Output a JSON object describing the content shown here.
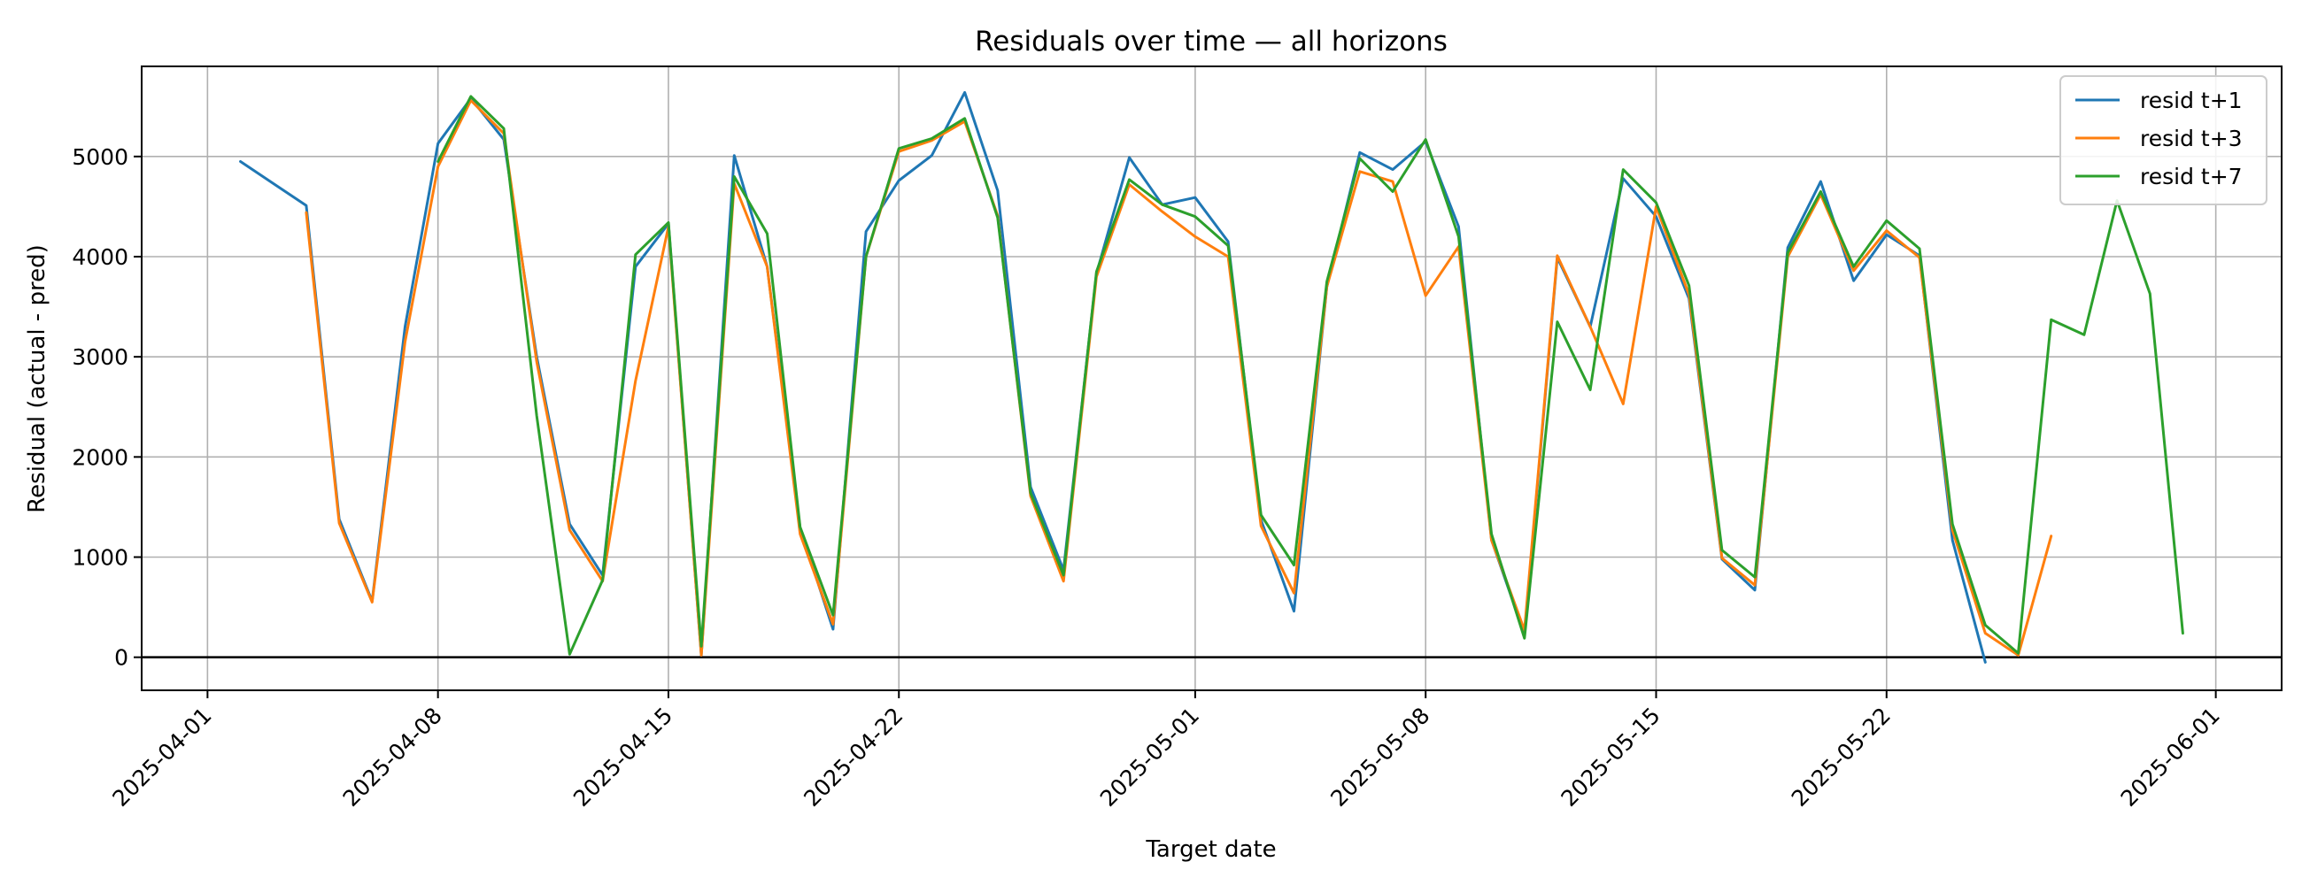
{
  "chart_data": {
    "type": "line",
    "title": "Residuals over time — all horizons",
    "xlabel": "Target date",
    "ylabel": "Residual (actual - pred)",
    "x_ticks": [
      "2025-04-01",
      "2025-04-08",
      "2025-04-15",
      "2025-04-22",
      "2025-05-01",
      "2025-05-08",
      "2025-05-15",
      "2025-05-22",
      "2025-06-01"
    ],
    "y_ticks": [
      0,
      1000,
      2000,
      3000,
      4000,
      5000
    ],
    "xlim": [
      "2025-03-30",
      "2025-06-03"
    ],
    "ylim": [
      -330,
      5900
    ],
    "grid": true,
    "legend_position": "top-right",
    "zero_line": 0,
    "series": [
      {
        "name": "resid t+1",
        "color": "#1f77b4",
        "x": [
          "2025-04-02",
          "2025-04-03",
          "2025-04-04",
          "2025-04-05",
          "2025-04-06",
          "2025-04-07",
          "2025-04-08",
          "2025-04-09",
          "2025-04-10",
          "2025-04-11",
          "2025-04-12",
          "2025-04-13",
          "2025-04-14",
          "2025-04-15",
          "2025-04-16",
          "2025-04-17",
          "2025-04-18",
          "2025-04-19",
          "2025-04-20",
          "2025-04-21",
          "2025-04-22",
          "2025-04-23",
          "2025-04-24",
          "2025-04-25",
          "2025-04-26",
          "2025-04-27",
          "2025-04-28",
          "2025-04-29",
          "2025-04-30",
          "2025-05-01",
          "2025-05-02",
          "2025-05-03",
          "2025-05-04",
          "2025-05-05",
          "2025-05-06",
          "2025-05-07",
          "2025-05-08",
          "2025-05-09",
          "2025-05-10",
          "2025-05-11",
          "2025-05-12",
          "2025-05-13",
          "2025-05-14",
          "2025-05-15",
          "2025-05-16",
          "2025-05-17",
          "2025-05-18",
          "2025-05-19",
          "2025-05-20",
          "2025-05-21",
          "2025-05-22",
          "2025-05-23",
          "2025-05-24",
          "2025-05-25"
        ],
        "y": [
          4950,
          4730,
          4510,
          1380,
          560,
          3300,
          5130,
          5580,
          5170,
          3000,
          1330,
          820,
          3900,
          4330,
          20,
          5010,
          3900,
          1290,
          280,
          4250,
          4760,
          5010,
          5640,
          4660,
          1700,
          870,
          3830,
          4990,
          4520,
          4590,
          4150,
          1370,
          460,
          3700,
          5040,
          4870,
          5150,
          4300,
          1170,
          230,
          3990,
          3300,
          4780,
          4400,
          3580,
          980,
          670,
          4090,
          4750,
          3760,
          4220,
          4010,
          1170,
          -50
        ]
      },
      {
        "name": "resid t+3",
        "color": "#ff7f0e",
        "x": [
          "2025-04-04",
          "2025-04-05",
          "2025-04-06",
          "2025-04-07",
          "2025-04-08",
          "2025-04-09",
          "2025-04-10",
          "2025-04-11",
          "2025-04-12",
          "2025-04-13",
          "2025-04-14",
          "2025-04-15",
          "2025-04-16",
          "2025-04-17",
          "2025-04-18",
          "2025-04-19",
          "2025-04-20",
          "2025-04-21",
          "2025-04-22",
          "2025-04-23",
          "2025-04-24",
          "2025-04-25",
          "2025-04-26",
          "2025-04-27",
          "2025-04-28",
          "2025-04-29",
          "2025-04-30",
          "2025-05-01",
          "2025-05-02",
          "2025-05-03",
          "2025-05-04",
          "2025-05-05",
          "2025-05-06",
          "2025-05-07",
          "2025-05-08",
          "2025-05-09",
          "2025-05-10",
          "2025-05-11",
          "2025-05-12",
          "2025-05-13",
          "2025-05-14",
          "2025-05-15",
          "2025-05-16",
          "2025-05-17",
          "2025-05-18",
          "2025-05-19",
          "2025-05-20",
          "2025-05-21",
          "2025-05-22",
          "2025-05-23",
          "2025-05-24",
          "2025-05-25",
          "2025-05-26",
          "2025-05-27"
        ],
        "y": [
          4440,
          1340,
          550,
          3150,
          4900,
          5560,
          5230,
          2950,
          1270,
          760,
          2760,
          4300,
          20,
          4730,
          3900,
          1230,
          330,
          4000,
          5050,
          5160,
          5350,
          4410,
          1610,
          760,
          3800,
          4720,
          4450,
          4200,
          4000,
          1310,
          640,
          3700,
          4850,
          4750,
          3610,
          4100,
          1170,
          270,
          4010,
          3300,
          2530,
          4500,
          3620,
          990,
          720,
          4000,
          4620,
          3860,
          4260,
          3990,
          1270,
          240,
          20,
          1210
        ]
      },
      {
        "name": "resid t+7",
        "color": "#2ca02c",
        "x": [
          "2025-04-08",
          "2025-04-09",
          "2025-04-10",
          "2025-04-11",
          "2025-04-12",
          "2025-04-13",
          "2025-04-14",
          "2025-04-15",
          "2025-04-16",
          "2025-04-17",
          "2025-04-18",
          "2025-04-19",
          "2025-04-20",
          "2025-04-21",
          "2025-04-22",
          "2025-04-23",
          "2025-04-24",
          "2025-04-25",
          "2025-04-26",
          "2025-04-27",
          "2025-04-28",
          "2025-04-29",
          "2025-04-30",
          "2025-05-01",
          "2025-05-02",
          "2025-05-03",
          "2025-05-04",
          "2025-05-05",
          "2025-05-06",
          "2025-05-07",
          "2025-05-08",
          "2025-05-09",
          "2025-05-10",
          "2025-05-11",
          "2025-05-12",
          "2025-05-13",
          "2025-05-14",
          "2025-05-15",
          "2025-05-16",
          "2025-05-17",
          "2025-05-18",
          "2025-05-19",
          "2025-05-20",
          "2025-05-21",
          "2025-05-22",
          "2025-05-23",
          "2025-05-24",
          "2025-05-25",
          "2025-05-26",
          "2025-05-27",
          "2025-05-28",
          "2025-05-29",
          "2025-05-30",
          "2025-05-31"
        ],
        "y": [
          4950,
          5600,
          5280,
          2410,
          30,
          770,
          4020,
          4340,
          110,
          4800,
          4230,
          1300,
          420,
          4000,
          5080,
          5180,
          5380,
          4390,
          1640,
          820,
          3850,
          4770,
          4520,
          4400,
          4110,
          1420,
          920,
          3750,
          4980,
          4650,
          5170,
          4200,
          1230,
          190,
          3350,
          2670,
          4870,
          4540,
          3710,
          1070,
          800,
          4040,
          4650,
          3900,
          4360,
          4080,
          1330,
          320,
          40,
          3370,
          3220,
          4560,
          3630,
          240
        ]
      }
    ]
  }
}
